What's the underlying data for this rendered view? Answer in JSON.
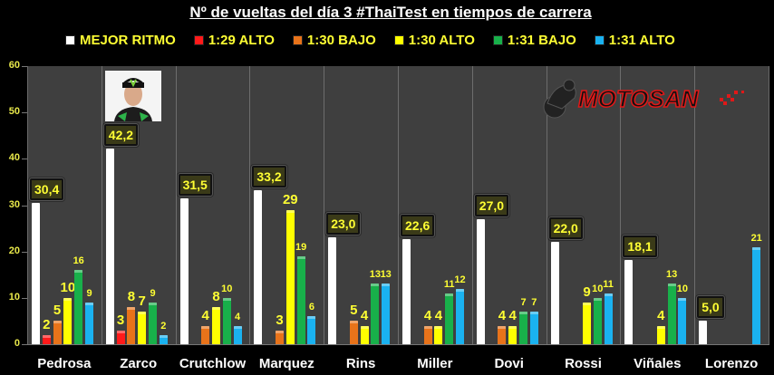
{
  "title": "Nº de vueltas del día 3 #ThaiTest en tiempos de carrera",
  "legend": [
    {
      "label": "MEJOR RITMO",
      "color": "#ffffff"
    },
    {
      "label": "1:29 ALTO",
      "color": "#ff1a1a"
    },
    {
      "label": "1:30 BAJO",
      "color": "#e8731a"
    },
    {
      "label": "1:30 ALTO",
      "color": "#ffff00"
    },
    {
      "label": "1:31 BAJO",
      "color": "#18b04a"
    },
    {
      "label": "1:31 ALTO",
      "color": "#1ab2f0"
    }
  ],
  "logo_text": "MOTOSAN",
  "chart_data": {
    "type": "bar",
    "title": "Nº de vueltas del día 3 #ThaiTest en tiempos de carrera",
    "xlabel": "",
    "ylabel": "",
    "ylim": [
      0,
      60
    ],
    "yticks": [
      0,
      10,
      20,
      30,
      40,
      50,
      60
    ],
    "grid": false,
    "legend_position": "top",
    "categories": [
      "Pedrosa",
      "Zarco",
      "Crutchlow",
      "Marquez",
      "Rins",
      "Miller",
      "Dovi",
      "Rossi",
      "Viñales",
      "Lorenzo"
    ],
    "series": [
      {
        "name": "MEJOR RITMO",
        "color": "#ffffff",
        "values": [
          30.4,
          42.2,
          31.5,
          33.2,
          23.0,
          22.6,
          27.0,
          22.0,
          18.1,
          5.0
        ],
        "labels": [
          "30,4",
          "42,2",
          "31,5",
          "33,2",
          "23,0",
          "22,6",
          "27,0",
          "22,0",
          "18,1",
          "5,0"
        ]
      },
      {
        "name": "1:29 ALTO",
        "color": "#ff1a1a",
        "values": [
          2,
          3,
          null,
          null,
          null,
          null,
          null,
          null,
          null,
          null
        ]
      },
      {
        "name": "1:30 BAJO",
        "color": "#e8731a",
        "values": [
          5,
          8,
          4,
          3,
          5,
          4,
          4,
          null,
          null,
          null
        ]
      },
      {
        "name": "1:30 ALTO",
        "color": "#ffff00",
        "values": [
          10,
          7,
          8,
          29,
          4,
          4,
          4,
          9,
          4,
          null
        ]
      },
      {
        "name": "1:31 BAJO",
        "color": "#18b04a",
        "values": [
          16,
          9,
          10,
          19,
          13,
          11,
          7,
          10,
          13,
          null
        ]
      },
      {
        "name": "1:31 ALTO",
        "color": "#1ab2f0",
        "values": [
          9,
          2,
          4,
          6,
          13,
          12,
          7,
          11,
          10,
          21
        ]
      }
    ]
  }
}
